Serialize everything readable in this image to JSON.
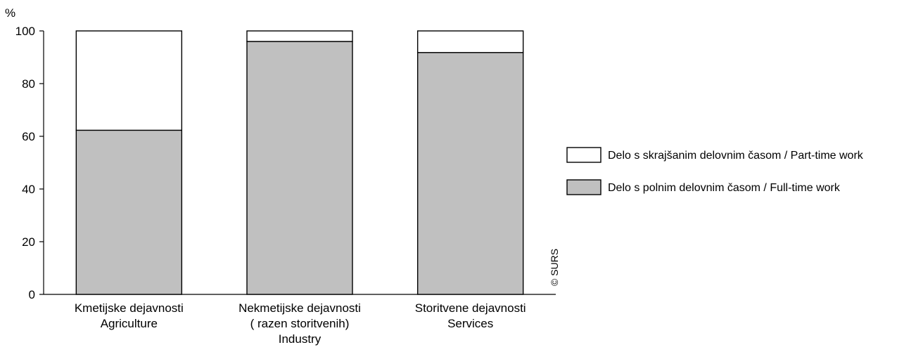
{
  "chart_data": {
    "type": "bar",
    "stacked": true,
    "y_unit": "%",
    "ylim": [
      0,
      100
    ],
    "yticks": [
      0,
      20,
      40,
      60,
      80,
      100
    ],
    "grid": false,
    "legend_position": "right",
    "categories": [
      [
        "Kmetijske dejavnosti",
        "Agriculture"
      ],
      [
        "Nekmetijske dejavnosti",
        "( razen storitvenih)",
        "Industry"
      ],
      [
        "Storitvene dejavnosti",
        "Services"
      ]
    ],
    "series": [
      {
        "name": "Delo s polnim delovnim časom / Full-time work",
        "color": "#c0c0c0",
        "values": [
          62.3,
          96.0,
          91.8
        ]
      },
      {
        "name": "Delo s skrajšanim delovnim časom / Part-time work",
        "color": "#ffffff",
        "values": [
          37.7,
          4.0,
          8.2
        ]
      }
    ],
    "legend_order": [
      1,
      0
    ],
    "credit": "© SURS"
  }
}
